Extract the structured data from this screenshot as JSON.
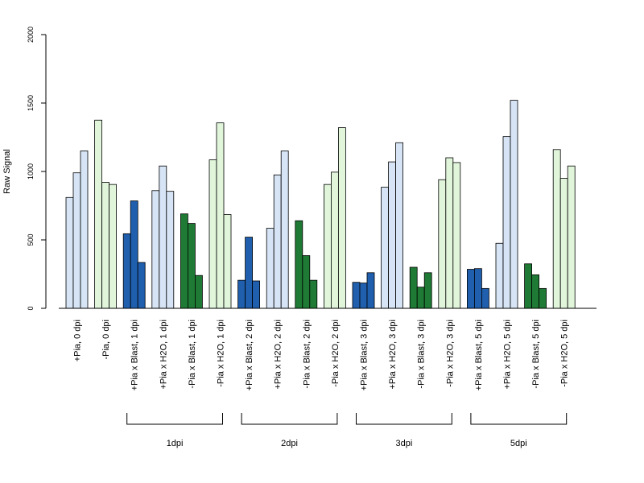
{
  "chart_data": {
    "type": "bar",
    "ylabel": "Raw Signal",
    "ylim": [
      0,
      2000
    ],
    "yticks": [
      0,
      500,
      1000,
      1500,
      2000
    ],
    "grid": false,
    "legend": "none",
    "colors": {
      "light_blue": "#d6e4f5",
      "light_green": "#e0f5da",
      "dark_blue": "#1f5fae",
      "dark_green": "#1e7a34",
      "outline": "#000000"
    },
    "categories": [
      "+Pia, 0 dpi",
      "-Pia, 0 dpi",
      "+Pia x Blast, 1 dpi",
      "+Pia x H2O, 1 dpi",
      "-Pia x Blast, 1 dpi",
      "-Pia x H2O, 1 dpi",
      "+Pia x Blast, 2 dpi",
      "+Pia x H2O, 2 dpi",
      "-Pia x Blast, 2 dpi",
      "-Pia x H2O, 2 dpi",
      "+Pia x Blast, 3 dpi",
      "+Pia x H2O, 3 dpi",
      "-Pia x Blast, 3 dpi",
      "-Pia x H2O, 3 dpi",
      "+Pia x Blast, 5 dpi",
      "+Pia x H2O, 5 dpi",
      "-Pia x Blast, 5 dpi",
      "-Pia x H2O, 5 dpi"
    ],
    "category_colors": [
      "light_blue",
      "light_green",
      "dark_blue",
      "light_blue",
      "dark_green",
      "light_green",
      "dark_blue",
      "light_blue",
      "dark_green",
      "light_green",
      "dark_blue",
      "light_blue",
      "dark_green",
      "light_green",
      "dark_blue",
      "light_blue",
      "dark_green",
      "light_green"
    ],
    "values": [
      [
        810,
        990,
        1150
      ],
      [
        1375,
        920,
        905
      ],
      [
        545,
        785,
        335
      ],
      [
        860,
        1040,
        855
      ],
      [
        690,
        620,
        240
      ],
      [
        1085,
        1355,
        685
      ],
      [
        205,
        520,
        200
      ],
      [
        585,
        975,
        1150
      ],
      [
        640,
        385,
        205
      ],
      [
        905,
        995,
        1320
      ],
      [
        190,
        185,
        260
      ],
      [
        885,
        1070,
        1210
      ],
      [
        300,
        155,
        260
      ],
      [
        940,
        1100,
        1065
      ],
      [
        285,
        290,
        145
      ],
      [
        475,
        1255,
        1520
      ],
      [
        325,
        245,
        145
      ],
      [
        1160,
        950,
        1040
      ]
    ],
    "groups": [
      {
        "label": "1dpi",
        "from": 2,
        "to": 5
      },
      {
        "label": "2dpi",
        "from": 6,
        "to": 9
      },
      {
        "label": "3dpi",
        "from": 10,
        "to": 13
      },
      {
        "label": "5dpi",
        "from": 14,
        "to": 17
      }
    ]
  }
}
